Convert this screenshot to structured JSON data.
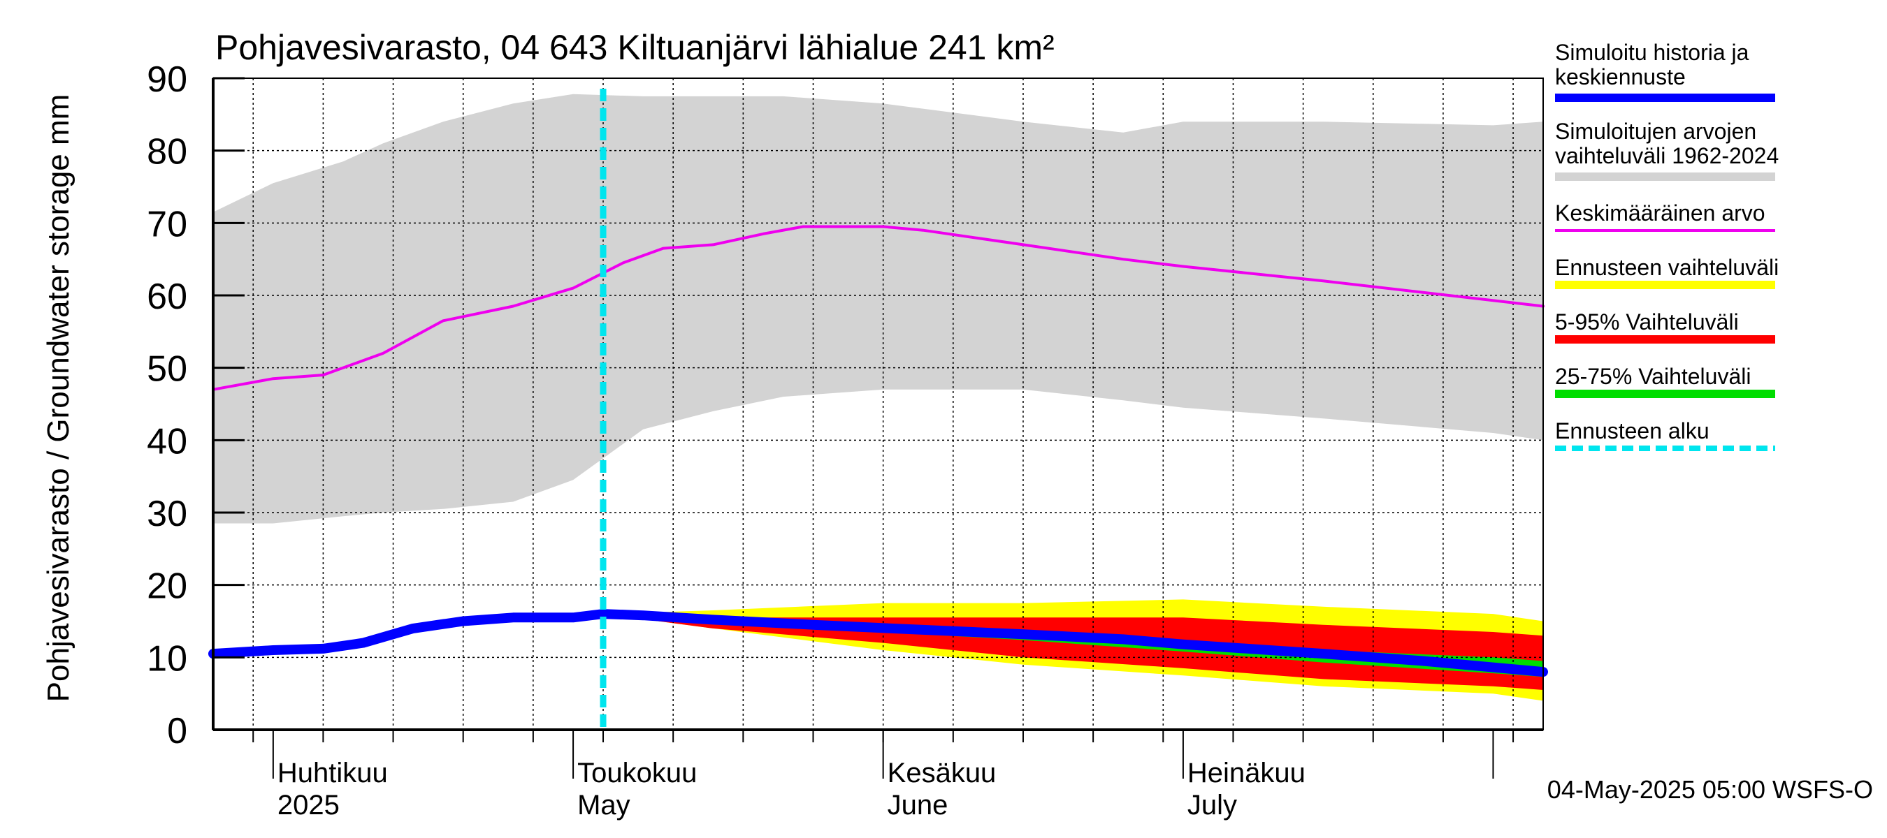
{
  "chart_data": {
    "type": "area",
    "title": "Pohjavesivarasto, 04 643 Kiltuanjärvi lähialue 241 km²",
    "ylabel": "Pohjavesivarasto / Groundwater storage   mm",
    "ylim": [
      0,
      90
    ],
    "yticks": [
      "0",
      "10",
      "20",
      "30",
      "40",
      "50",
      "60",
      "70",
      "80",
      "90"
    ],
    "xlim": [
      "2025-03-26",
      "2025-08-06"
    ],
    "month_labels": [
      {
        "date": "2025-04-01",
        "fi": "Huhtikuu",
        "en": "2025"
      },
      {
        "date": "2025-05-01",
        "fi": "Toukokuu",
        "en": "May"
      },
      {
        "date": "2025-06-01",
        "fi": "Kesäkuu",
        "en": "June"
      },
      {
        "date": "2025-07-01",
        "fi": "Heinäkuu",
        "en": "July"
      }
    ],
    "forecast_start": "2025-05-04",
    "grid": true,
    "legend_position": "right",
    "footer": "04-May-2025 05:00 WSFS-O",
    "series": [
      {
        "name": "Simuloitujen arvojen vaihteluväli 1962-2024",
        "kind": "band",
        "color": "#d3d3d3",
        "x": [
          "2025-03-26",
          "2025-04-01",
          "2025-04-08",
          "2025-04-12",
          "2025-04-18",
          "2025-04-25",
          "2025-05-01",
          "2025-05-08",
          "2025-05-15",
          "2025-05-22",
          "2025-06-01",
          "2025-06-15",
          "2025-06-25",
          "2025-07-01",
          "2025-07-15",
          "2025-08-01",
          "2025-08-06"
        ],
        "upper": [
          71.5,
          75.5,
          78.5,
          81.0,
          84.0,
          86.5,
          87.8,
          87.5,
          87.5,
          87.5,
          86.5,
          84.0,
          82.5,
          84.0,
          84.0,
          83.5,
          84.0
        ],
        "lower": [
          28.5,
          28.5,
          29.5,
          30.0,
          30.5,
          31.5,
          34.5,
          41.5,
          44.0,
          46.0,
          47.0,
          47.0,
          45.5,
          44.5,
          43.0,
          41.0,
          40.0
        ]
      },
      {
        "name": "Ennusteen vaihteluväli",
        "kind": "band",
        "color": "#ffff00",
        "x": [
          "2025-05-04",
          "2025-05-15",
          "2025-06-01",
          "2025-06-15",
          "2025-07-01",
          "2025-07-15",
          "2025-08-01",
          "2025-08-06"
        ],
        "upper": [
          16.0,
          16.5,
          17.5,
          17.5,
          18.0,
          17.0,
          16.0,
          15.0
        ],
        "lower": [
          16.0,
          14.0,
          11.0,
          9.0,
          7.5,
          6.0,
          5.0,
          4.0
        ]
      },
      {
        "name": "5-95% Vaihteluväli",
        "kind": "band",
        "color": "#ff0000",
        "x": [
          "2025-05-04",
          "2025-05-15",
          "2025-06-01",
          "2025-06-15",
          "2025-07-01",
          "2025-07-15",
          "2025-08-01",
          "2025-08-06"
        ],
        "upper": [
          16.0,
          15.5,
          15.5,
          15.5,
          15.5,
          14.5,
          13.5,
          13.0
        ],
        "lower": [
          16.0,
          14.0,
          12.0,
          10.0,
          8.5,
          7.0,
          6.0,
          5.5
        ]
      },
      {
        "name": "25-75% Vaihteluväli",
        "kind": "band",
        "color": "#00dd00",
        "x": [
          "2025-05-04",
          "2025-05-15",
          "2025-06-01",
          "2025-06-15",
          "2025-07-01",
          "2025-07-15",
          "2025-08-01",
          "2025-08-06"
        ],
        "upper": [
          16.0,
          15.2,
          14.3,
          13.5,
          12.0,
          11.0,
          10.0,
          9.5
        ],
        "lower": [
          16.0,
          14.9,
          13.5,
          12.4,
          10.8,
          9.3,
          7.8,
          7.3
        ]
      },
      {
        "name": "Keskimääräinen arvo",
        "kind": "line",
        "color": "#ee00ee",
        "x": [
          "2025-03-26",
          "2025-04-01",
          "2025-04-06",
          "2025-04-12",
          "2025-04-18",
          "2025-04-25",
          "2025-05-01",
          "2025-05-06",
          "2025-05-10",
          "2025-05-15",
          "2025-05-20",
          "2025-05-24",
          "2025-06-01",
          "2025-06-05",
          "2025-06-15",
          "2025-06-25",
          "2025-07-01",
          "2025-07-15",
          "2025-08-06"
        ],
        "y": [
          47.0,
          48.5,
          49.0,
          52.0,
          56.5,
          58.5,
          61.0,
          64.5,
          66.5,
          67.0,
          68.5,
          69.5,
          69.5,
          69.0,
          67.0,
          65.0,
          64.0,
          62.0,
          58.5
        ]
      },
      {
        "name": "Simuloitu historia ja keskiennuste",
        "kind": "line",
        "color": "#0000ff",
        "x": [
          "2025-03-26",
          "2025-04-01",
          "2025-04-06",
          "2025-04-10",
          "2025-04-15",
          "2025-04-20",
          "2025-04-25",
          "2025-05-01",
          "2025-05-04",
          "2025-05-08",
          "2025-05-15",
          "2025-05-25",
          "2025-06-05",
          "2025-06-15",
          "2025-06-25",
          "2025-07-01",
          "2025-07-15",
          "2025-07-25",
          "2025-08-06"
        ],
        "y": [
          10.5,
          11.0,
          11.2,
          12.0,
          14.0,
          15.0,
          15.5,
          15.5,
          16.0,
          15.8,
          15.2,
          14.5,
          13.8,
          13.2,
          12.5,
          11.8,
          10.5,
          9.5,
          8.0
        ]
      }
    ]
  },
  "legend": [
    {
      "label": "Simuloitu historia ja keskiennuste",
      "color": "#0000ff",
      "style": "solid"
    },
    {
      "label": "Simuloitujen arvojen vaihteluväli 1962-2024",
      "color": "#d3d3d3",
      "style": "solid"
    },
    {
      "label": "Keskimääräinen arvo",
      "color": "#ee00ee",
      "style": "thin"
    },
    {
      "label": "Ennusteen vaihteluväli",
      "color": "#ffff00",
      "style": "solid"
    },
    {
      "label": "5-95% Vaihteluväli",
      "color": "#ff0000",
      "style": "solid"
    },
    {
      "label": "25-75% Vaihteluväli",
      "color": "#00dd00",
      "style": "solid"
    },
    {
      "label": "Ennusteen alku",
      "color": "#00e5ee",
      "style": "dashed"
    }
  ]
}
